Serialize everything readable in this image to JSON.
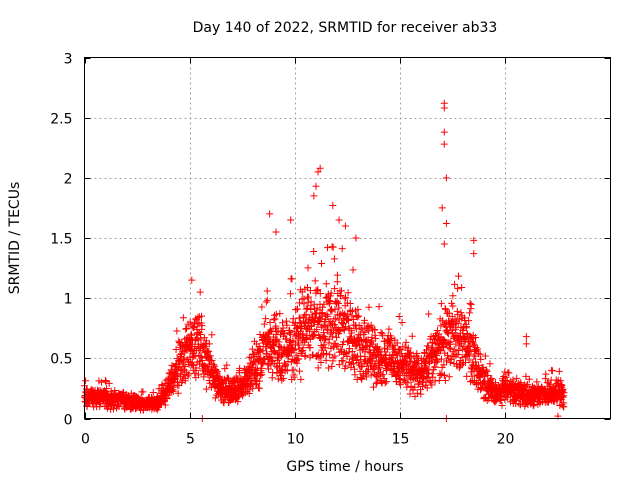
{
  "chart_data": {
    "type": "scatter",
    "title": "Day 140 of 2022, SRMTID for receiver ab33",
    "xlabel": "GPS time / hours",
    "ylabel": "SRMTID / TECUs",
    "xlim": [
      0,
      25
    ],
    "ylim": [
      0,
      3
    ],
    "xticks": [
      0,
      5,
      10,
      15,
      20
    ],
    "yticks": [
      0,
      0.5,
      1,
      1.5,
      2,
      2.5,
      3
    ],
    "xtick_labels": [
      "0",
      "5",
      "10",
      "15",
      "20"
    ],
    "ytick_labels": [
      "0",
      "0.5",
      "1",
      "1.5",
      "2",
      "2.5",
      "3"
    ],
    "grid": true,
    "marker": "+",
    "color": "#ff0000",
    "trend": [
      [
        0.0,
        0.18
      ],
      [
        1.0,
        0.17
      ],
      [
        2.0,
        0.14
      ],
      [
        3.0,
        0.12
      ],
      [
        3.5,
        0.13
      ],
      [
        4.0,
        0.25
      ],
      [
        4.5,
        0.45
      ],
      [
        5.0,
        0.55
      ],
      [
        5.5,
        0.6
      ],
      [
        6.0,
        0.4
      ],
      [
        6.5,
        0.25
      ],
      [
        7.0,
        0.22
      ],
      [
        7.5,
        0.25
      ],
      [
        8.0,
        0.4
      ],
      [
        8.5,
        0.55
      ],
      [
        9.0,
        0.6
      ],
      [
        9.5,
        0.55
      ],
      [
        10.0,
        0.65
      ],
      [
        10.5,
        0.75
      ],
      [
        11.0,
        0.8
      ],
      [
        11.5,
        0.75
      ],
      [
        12.0,
        0.8
      ],
      [
        12.5,
        0.75
      ],
      [
        13.0,
        0.6
      ],
      [
        13.5,
        0.55
      ],
      [
        14.0,
        0.5
      ],
      [
        14.5,
        0.5
      ],
      [
        15.0,
        0.45
      ],
      [
        15.5,
        0.4
      ],
      [
        16.0,
        0.35
      ],
      [
        16.5,
        0.5
      ],
      [
        17.0,
        0.6
      ],
      [
        17.5,
        0.7
      ],
      [
        18.0,
        0.6
      ],
      [
        18.5,
        0.5
      ],
      [
        19.0,
        0.3
      ],
      [
        19.5,
        0.2
      ],
      [
        20.0,
        0.25
      ],
      [
        20.5,
        0.2
      ],
      [
        21.0,
        0.2
      ],
      [
        21.5,
        0.2
      ],
      [
        22.0,
        0.2
      ],
      [
        22.5,
        0.22
      ],
      [
        22.8,
        0.2
      ]
    ],
    "notable_points": [
      [
        5.1,
        1.15
      ],
      [
        5.5,
        1.05
      ],
      [
        5.6,
        0.0
      ],
      [
        8.8,
        1.7
      ],
      [
        9.1,
        1.55
      ],
      [
        9.8,
        1.65
      ],
      [
        10.9,
        1.85
      ],
      [
        11.1,
        2.05
      ],
      [
        11.2,
        2.08
      ],
      [
        11.0,
        1.93
      ],
      [
        11.8,
        1.77
      ],
      [
        12.1,
        1.65
      ],
      [
        12.4,
        1.6
      ],
      [
        12.9,
        1.5
      ],
      [
        14.0,
        0.93
      ],
      [
        17.1,
        2.62
      ],
      [
        17.1,
        2.58
      ],
      [
        17.1,
        2.38
      ],
      [
        17.1,
        2.28
      ],
      [
        17.2,
        2.0
      ],
      [
        17.0,
        1.75
      ],
      [
        17.2,
        1.62
      ],
      [
        17.1,
        1.45
      ],
      [
        17.2,
        0.0
      ],
      [
        18.5,
        1.48
      ],
      [
        18.5,
        1.37
      ],
      [
        21.0,
        0.68
      ],
      [
        21.0,
        0.62
      ],
      [
        22.2,
        0.4
      ],
      [
        22.5,
        0.02
      ]
    ]
  }
}
